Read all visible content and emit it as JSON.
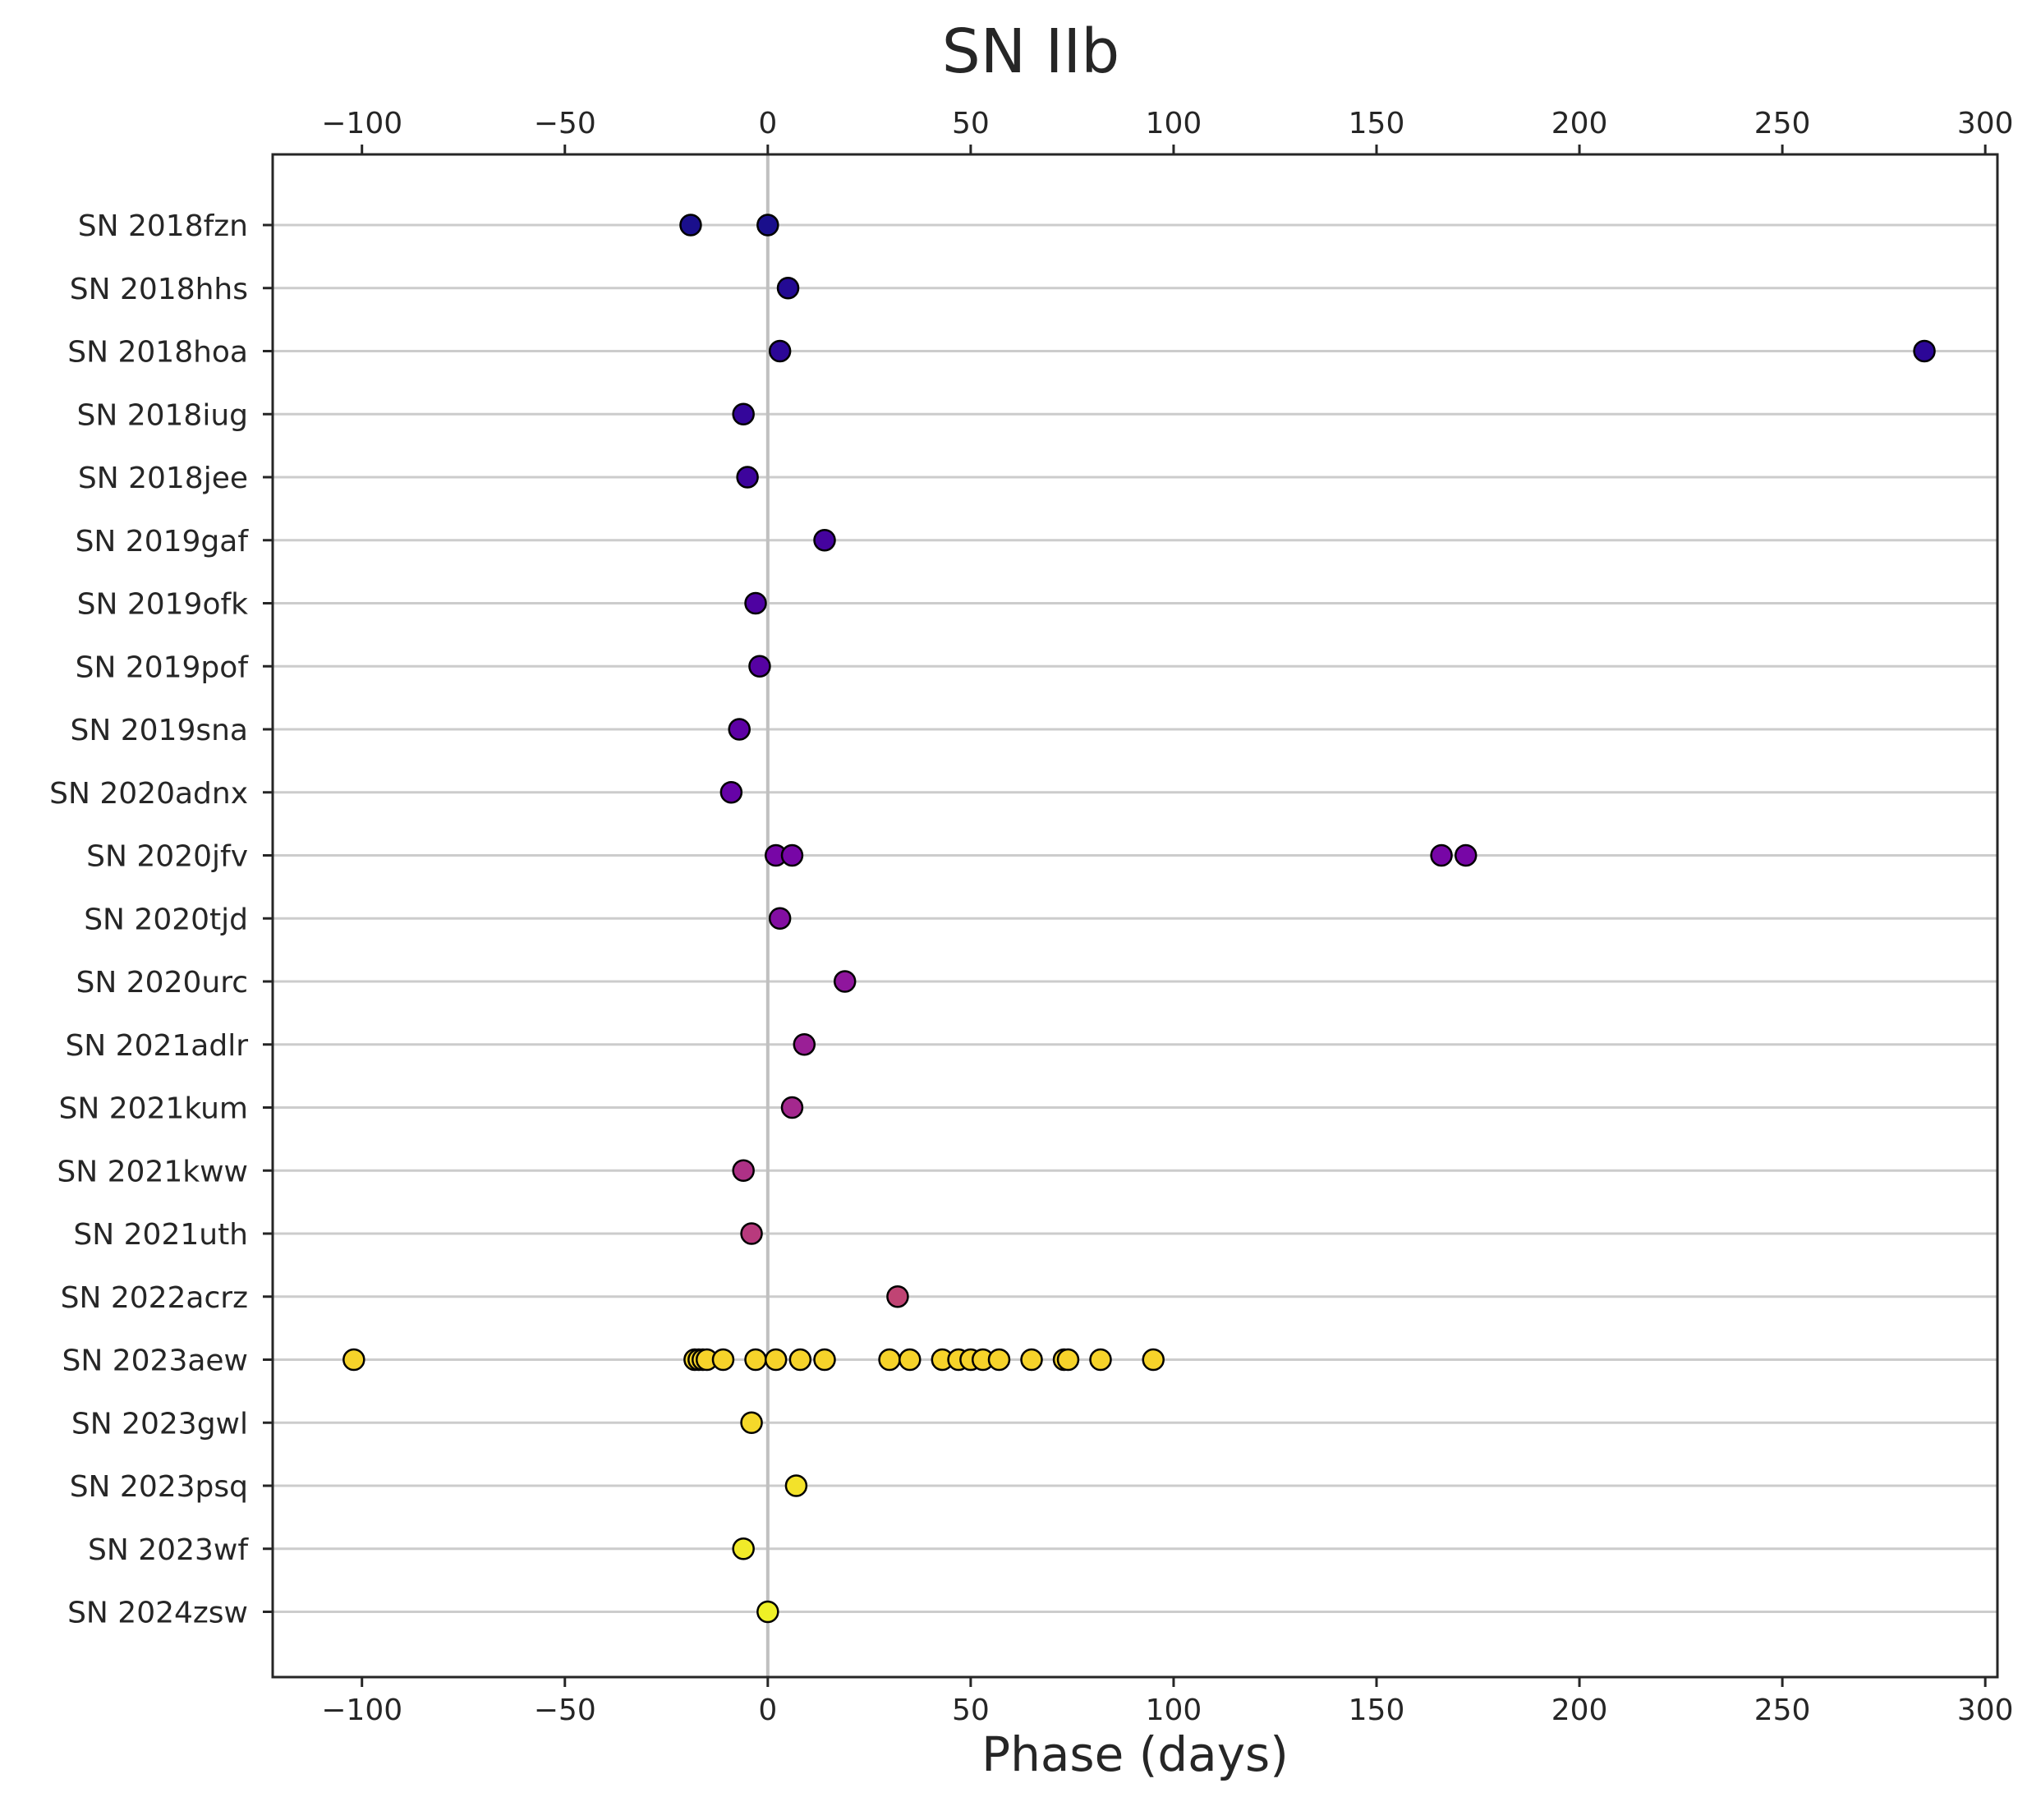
{
  "chart_data": {
    "type": "scatter",
    "title": "SN IIb",
    "xlabel": "Phase (days)",
    "ylabel": "",
    "xlim": [
      -122,
      303
    ],
    "x_ticks": [
      -100,
      -50,
      0,
      50,
      100,
      150,
      200,
      250,
      300
    ],
    "x_tick_labels": [
      "−100",
      "−50",
      "0",
      "50",
      "100",
      "150",
      "200",
      "250",
      "300"
    ],
    "top_axis_mirrors_bottom": true,
    "reference_line_x": 0,
    "grid": "horizontal",
    "colormap": "plasma",
    "objects": [
      {
        "name": "SN 2018fzn",
        "color": "#1a0f8c",
        "phases": [
          -19,
          0
        ]
      },
      {
        "name": "SN 2018hhs",
        "color": "#230a93",
        "phases": [
          5
        ]
      },
      {
        "name": "SN 2018hoa",
        "color": "#2c0797",
        "phases": [
          3,
          285
        ]
      },
      {
        "name": "SN 2018iug",
        "color": "#34069a",
        "phases": [
          -6
        ]
      },
      {
        "name": "SN 2018jee",
        "color": "#3d049c",
        "phases": [
          -5
        ]
      },
      {
        "name": "SN 2019gaf",
        "color": "#45039e",
        "phases": [
          14
        ]
      },
      {
        "name": "SN 2019ofk",
        "color": "#4e02a1",
        "phases": [
          -3
        ]
      },
      {
        "name": "SN 2019pof",
        "color": "#5602a3",
        "phases": [
          -2
        ]
      },
      {
        "name": "SN 2019sna",
        "color": "#5e01a5",
        "phases": [
          -7
        ]
      },
      {
        "name": "SN 2020adnx",
        "color": "#6603a6",
        "phases": [
          -9
        ]
      },
      {
        "name": "SN 2020jfv",
        "color": "#7706a6",
        "phases": [
          2,
          6,
          166,
          172
        ]
      },
      {
        "name": "SN 2020tjd",
        "color": "#830ea2",
        "phases": [
          3
        ]
      },
      {
        "name": "SN 2020urc",
        "color": "#8f169d",
        "phases": [
          19
        ]
      },
      {
        "name": "SN 2021adlr",
        "color": "#9a1f96",
        "phases": [
          9
        ]
      },
      {
        "name": "SN 2021kum",
        "color": "#a4288e",
        "phases": [
          6
        ]
      },
      {
        "name": "SN 2021kww",
        "color": "#ae3186",
        "phases": [
          -6
        ]
      },
      {
        "name": "SN 2021uth",
        "color": "#b83a7d",
        "phases": [
          -4
        ]
      },
      {
        "name": "SN 2022acrz",
        "color": "#c04474",
        "phases": [
          32
        ]
      },
      {
        "name": "SN 2023aew",
        "color": "#f6d32a",
        "phases": [
          -102,
          -18,
          -17,
          -16,
          -15,
          -11,
          -3,
          2,
          8,
          14,
          30,
          35,
          43,
          47,
          50,
          53,
          57,
          65,
          73,
          74,
          82,
          95
        ]
      },
      {
        "name": "SN 2023gwl",
        "color": "#f5d82a",
        "phases": [
          -4
        ]
      },
      {
        "name": "SN 2023psq",
        "color": "#f3e22a",
        "phases": [
          7
        ]
      },
      {
        "name": "SN 2023wf",
        "color": "#f1ea29",
        "phases": [
          -6
        ]
      },
      {
        "name": "SN 2024zsw",
        "color": "#eef026",
        "phases": [
          0
        ]
      }
    ]
  }
}
